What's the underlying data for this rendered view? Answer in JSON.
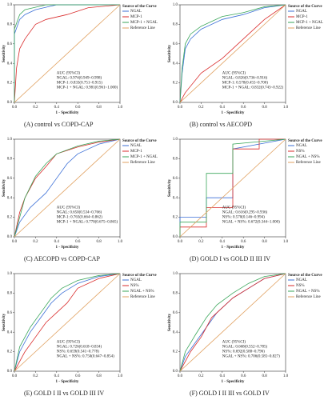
{
  "chart_data": [
    {
      "type": "line",
      "y_label": "Sensitivity",
      "x_label": "1 - Specificity",
      "legend_title": "Source of the Curve",
      "caption": "(A) control vs COPD-CAP",
      "annotations": [
        "AUC (95%CI)",
        "NGAL: 0.974(0.949~0.998)",
        "MCP-1: 0.833(0.751~0.915)",
        "MCP-1 + NGAL: 0.981(0.961~1.000)"
      ],
      "xlim": [
        0,
        1
      ],
      "ylim": [
        0,
        1
      ],
      "xticks": [
        {
          "value": 0,
          "label": "0.0"
        },
        0.2,
        0.4,
        0.6,
        0.8,
        {
          "value": 1,
          "label": "1.0"
        }
      ],
      "yticks": [
        {
          "value": 0,
          "label": "0.0"
        },
        0.2,
        0.4,
        0.6,
        0.8,
        {
          "value": 1,
          "label": "1.0"
        }
      ],
      "series": [
        {
          "name": "NGAL",
          "color": "#3b6fd6",
          "x": [
            0,
            0,
            0.05,
            0.1,
            0.2,
            0.4,
            1
          ],
          "values": [
            0,
            0.7,
            0.85,
            0.9,
            0.95,
            1,
            1
          ]
        },
        {
          "name": "MCP-1",
          "color": "#d92b2b",
          "x": [
            0,
            0.02,
            0.05,
            0.1,
            0.2,
            0.3,
            0.5,
            0.7,
            1
          ],
          "values": [
            0,
            0.35,
            0.55,
            0.65,
            0.8,
            0.85,
            0.9,
            0.97,
            1
          ]
        },
        {
          "name": "MCP-1 + NGAL",
          "color": "#3aa65a",
          "x": [
            0,
            0,
            0.05,
            0.1,
            0.3,
            1
          ],
          "values": [
            0,
            0.75,
            0.9,
            0.95,
            1,
            1
          ]
        },
        {
          "name": "Reference Line",
          "color": "#e0a060",
          "x": [
            0,
            1
          ],
          "values": [
            0,
            1
          ]
        }
      ]
    },
    {
      "type": "line",
      "y_label": "Sensitivity",
      "x_label": "1 - Specificity",
      "legend_title": "Source of the Curve",
      "caption": "(B) control vs AECOPD",
      "annotations": [
        "AUC (95%CI)",
        "NGAL: 0.826(0.736~0.916)",
        "MCP-1: 0.578(0.455~0.700)",
        "MCP-1 + NGAL: 0.832(0.743~0.922)"
      ],
      "xlim": [
        0,
        1
      ],
      "ylim": [
        0,
        1
      ],
      "xticks": [
        {
          "value": 0,
          "label": "0.0"
        },
        0.2,
        0.4,
        0.6,
        0.8,
        {
          "value": 1,
          "label": "1.0"
        }
      ],
      "yticks": [
        {
          "value": 0,
          "label": "0.0"
        },
        0.2,
        0.4,
        0.6,
        0.8,
        {
          "value": 1,
          "label": "1.0"
        }
      ],
      "series": [
        {
          "name": "NGAL",
          "color": "#3b6fd6",
          "x": [
            0,
            0.02,
            0.05,
            0.1,
            0.2,
            0.4,
            0.6,
            0.8,
            1
          ],
          "values": [
            0,
            0.3,
            0.55,
            0.65,
            0.75,
            0.85,
            0.9,
            0.97,
            1
          ]
        },
        {
          "name": "MCP-1",
          "color": "#d92b2b",
          "x": [
            0,
            0.05,
            0.2,
            0.4,
            0.6,
            0.8,
            1
          ],
          "values": [
            0,
            0.1,
            0.3,
            0.45,
            0.65,
            0.85,
            1
          ]
        },
        {
          "name": "MCP-1 + NGAL",
          "color": "#3aa65a",
          "x": [
            0,
            0.02,
            0.05,
            0.1,
            0.2,
            0.4,
            0.6,
            0.8,
            1
          ],
          "values": [
            0,
            0.35,
            0.6,
            0.7,
            0.78,
            0.88,
            0.92,
            0.98,
            1
          ]
        },
        {
          "name": "Reference Line",
          "color": "#e0a060",
          "x": [
            0,
            1
          ],
          "values": [
            0,
            1
          ]
        }
      ]
    },
    {
      "type": "line",
      "y_label": "Sensitivity",
      "x_label": "1 - Specificity",
      "legend_title": "Source of the Curve",
      "caption": "(C) AECOPD vs COPD-CAP",
      "annotations": [
        "AUC (95%CI)",
        "NGAL: 0.650(0.534~0.766)",
        "MCP-1: 0.763(0.664~0.862)",
        "MCP-1 + NGAL: 0.770(0.675~0.865)"
      ],
      "xlim": [
        0,
        1
      ],
      "ylim": [
        0,
        1
      ],
      "xticks": [
        {
          "value": 0,
          "label": "0.0"
        },
        0.2,
        0.4,
        0.6,
        0.8,
        {
          "value": 1,
          "label": "1.0"
        }
      ],
      "yticks": [
        {
          "value": 0,
          "label": "0.0"
        },
        0.2,
        0.4,
        0.6,
        0.8,
        {
          "value": 1,
          "label": "1.0"
        }
      ],
      "series": [
        {
          "name": "NGAL",
          "color": "#3b6fd6",
          "x": [
            0,
            0.05,
            0.15,
            0.3,
            0.4,
            0.5,
            0.6,
            0.8,
            1
          ],
          "values": [
            0,
            0.15,
            0.3,
            0.45,
            0.6,
            0.75,
            0.85,
            0.95,
            1
          ]
        },
        {
          "name": "MCP-1",
          "color": "#d92b2b",
          "x": [
            0,
            0.05,
            0.1,
            0.2,
            0.3,
            0.4,
            0.6,
            0.8,
            1
          ],
          "values": [
            0,
            0.25,
            0.4,
            0.6,
            0.72,
            0.85,
            0.92,
            0.97,
            1
          ]
        },
        {
          "name": "MCP-1 + NGAL",
          "color": "#3aa65a",
          "x": [
            0,
            0.05,
            0.1,
            0.2,
            0.3,
            0.4,
            0.6,
            0.8,
            1
          ],
          "values": [
            0,
            0.2,
            0.4,
            0.62,
            0.75,
            0.85,
            0.93,
            0.98,
            1
          ]
        },
        {
          "name": "Reference Line",
          "color": "#e0a060",
          "x": [
            0,
            1
          ],
          "values": [
            0,
            1
          ]
        }
      ]
    },
    {
      "type": "line",
      "y_label": "Sensitivity",
      "x_label": "1 - Specificity",
      "legend_title": "Source of the Curve",
      "caption": "(D) GOLD I vs GOLD II III IV",
      "annotations": [
        "AUC (95%CI)",
        "NGAL: 0.616(0.295~0.936)",
        "NS%: 0.570(0.146~0.994)",
        "NGAL + NS%: 0.672(0.344~1.000)"
      ],
      "xlim": [
        0,
        1
      ],
      "ylim": [
        0,
        1
      ],
      "xticks": [
        {
          "value": 0,
          "label": "0.0"
        },
        0.2,
        0.4,
        0.6,
        0.8,
        {
          "value": 1,
          "label": "1.0"
        }
      ],
      "yticks": [
        {
          "value": 0,
          "label": "0.0"
        },
        0.2,
        0.4,
        0.6,
        0.8,
        {
          "value": 1,
          "label": "1.0"
        }
      ],
      "series": [
        {
          "name": "NGAL",
          "color": "#3b6fd6",
          "x": [
            0,
            0,
            0.25,
            0.25,
            0.5,
            0.5,
            1
          ],
          "values": [
            0,
            0.2,
            0.2,
            0.4,
            0.4,
            0.9,
            1
          ]
        },
        {
          "name": "NS%",
          "color": "#d92b2b",
          "x": [
            0,
            0,
            0.25,
            0.25,
            0.5,
            0.5,
            0.75,
            0.75,
            1
          ],
          "values": [
            0,
            0.1,
            0.1,
            0.3,
            0.3,
            0.9,
            0.9,
            1,
            1
          ]
        },
        {
          "name": "NGAL + NS%",
          "color": "#3aa65a",
          "x": [
            0,
            0,
            0.25,
            0.25,
            0.5,
            0.5,
            1
          ],
          "values": [
            0,
            0.15,
            0.15,
            0.65,
            0.65,
            0.95,
            1
          ]
        },
        {
          "name": "Reference Line",
          "color": "#e0a060",
          "x": [
            0,
            1
          ],
          "values": [
            0,
            1
          ]
        }
      ]
    },
    {
      "type": "line",
      "y_label": "Sensitivity",
      "x_label": "1 - Specificity",
      "legend_title": "Source of the Curve",
      "caption": "(E) GOLD I II vs GOLD III IV",
      "annotations": [
        "AUC (95%CI)",
        "NGAL: 0.726(0.618~0.834)",
        "NS%: 0.659(0.541~0.778)",
        "NGAL + NS%: 0.750(0.647~0.854)"
      ],
      "xlim": [
        0,
        1
      ],
      "ylim": [
        0,
        1
      ],
      "xticks": [
        {
          "value": 0,
          "label": "0.0"
        },
        0.2,
        0.4,
        0.6,
        0.8,
        {
          "value": 1,
          "label": "1.0"
        }
      ],
      "yticks": [
        {
          "value": 0,
          "label": "0.0"
        },
        0.2,
        0.4,
        0.6,
        0.8,
        {
          "value": 1,
          "label": "1.0"
        }
      ],
      "series": [
        {
          "name": "NGAL",
          "color": "#3b6fd6",
          "x": [
            0,
            0.05,
            0.15,
            0.25,
            0.35,
            0.45,
            0.6,
            0.8,
            1
          ],
          "values": [
            0,
            0.2,
            0.4,
            0.55,
            0.7,
            0.8,
            0.9,
            0.97,
            1
          ]
        },
        {
          "name": "NS%",
          "color": "#d92b2b",
          "x": [
            0,
            0.1,
            0.2,
            0.3,
            0.4,
            0.5,
            0.6,
            0.8,
            1
          ],
          "values": [
            0,
            0.2,
            0.35,
            0.5,
            0.6,
            0.7,
            0.85,
            0.95,
            1
          ]
        },
        {
          "name": "NGAL + NS%",
          "color": "#3aa65a",
          "x": [
            0,
            0.05,
            0.15,
            0.25,
            0.35,
            0.45,
            0.6,
            0.8,
            1
          ],
          "values": [
            0,
            0.25,
            0.45,
            0.6,
            0.75,
            0.85,
            0.93,
            0.98,
            1
          ]
        },
        {
          "name": "Reference Line",
          "color": "#e0a060",
          "x": [
            0,
            1
          ],
          "values": [
            0,
            1
          ]
        }
      ]
    },
    {
      "type": "line",
      "y_label": "Sensitivity",
      "x_label": "1 - Specificity",
      "legend_title": "Source of the Curve",
      "caption": "(F) GOLD I II III vs GOLD IV",
      "annotations": [
        "AUC (95%CI)",
        "NGAL: 0.668(0.552~0.785)",
        "NS%: 0.692(0.588~0.796)",
        "NGAL + NS%: 0.706(0.585~0.827)"
      ],
      "xlim": [
        0,
        1
      ],
      "ylim": [
        0,
        1
      ],
      "xticks": [
        {
          "value": 0,
          "label": "0.0"
        },
        0.2,
        0.4,
        0.6,
        0.8,
        {
          "value": 1,
          "label": "1.0"
        }
      ],
      "yticks": [
        {
          "value": 0,
          "label": "0.0"
        },
        0.2,
        0.4,
        0.6,
        0.8,
        {
          "value": 1,
          "label": "1.0"
        }
      ],
      "series": [
        {
          "name": "NGAL",
          "color": "#3b6fd6",
          "x": [
            0,
            0.05,
            0.15,
            0.25,
            0.35,
            0.5,
            0.65,
            0.8,
            1
          ],
          "values": [
            0,
            0.15,
            0.3,
            0.45,
            0.6,
            0.75,
            0.85,
            0.95,
            1
          ]
        },
        {
          "name": "NS%",
          "color": "#d92b2b",
          "x": [
            0,
            0.1,
            0.2,
            0.3,
            0.4,
            0.5,
            0.65,
            0.8,
            1
          ],
          "values": [
            0,
            0.2,
            0.35,
            0.55,
            0.65,
            0.75,
            0.85,
            0.95,
            1
          ]
        },
        {
          "name": "NGAL + NS%",
          "color": "#3aa65a",
          "x": [
            0,
            0.05,
            0.15,
            0.25,
            0.35,
            0.5,
            0.65,
            0.8,
            1
          ],
          "values": [
            0,
            0.2,
            0.38,
            0.55,
            0.68,
            0.8,
            0.9,
            0.97,
            1
          ]
        },
        {
          "name": "Reference Line",
          "color": "#e0a060",
          "x": [
            0,
            1
          ],
          "values": [
            0,
            1
          ]
        }
      ]
    }
  ]
}
